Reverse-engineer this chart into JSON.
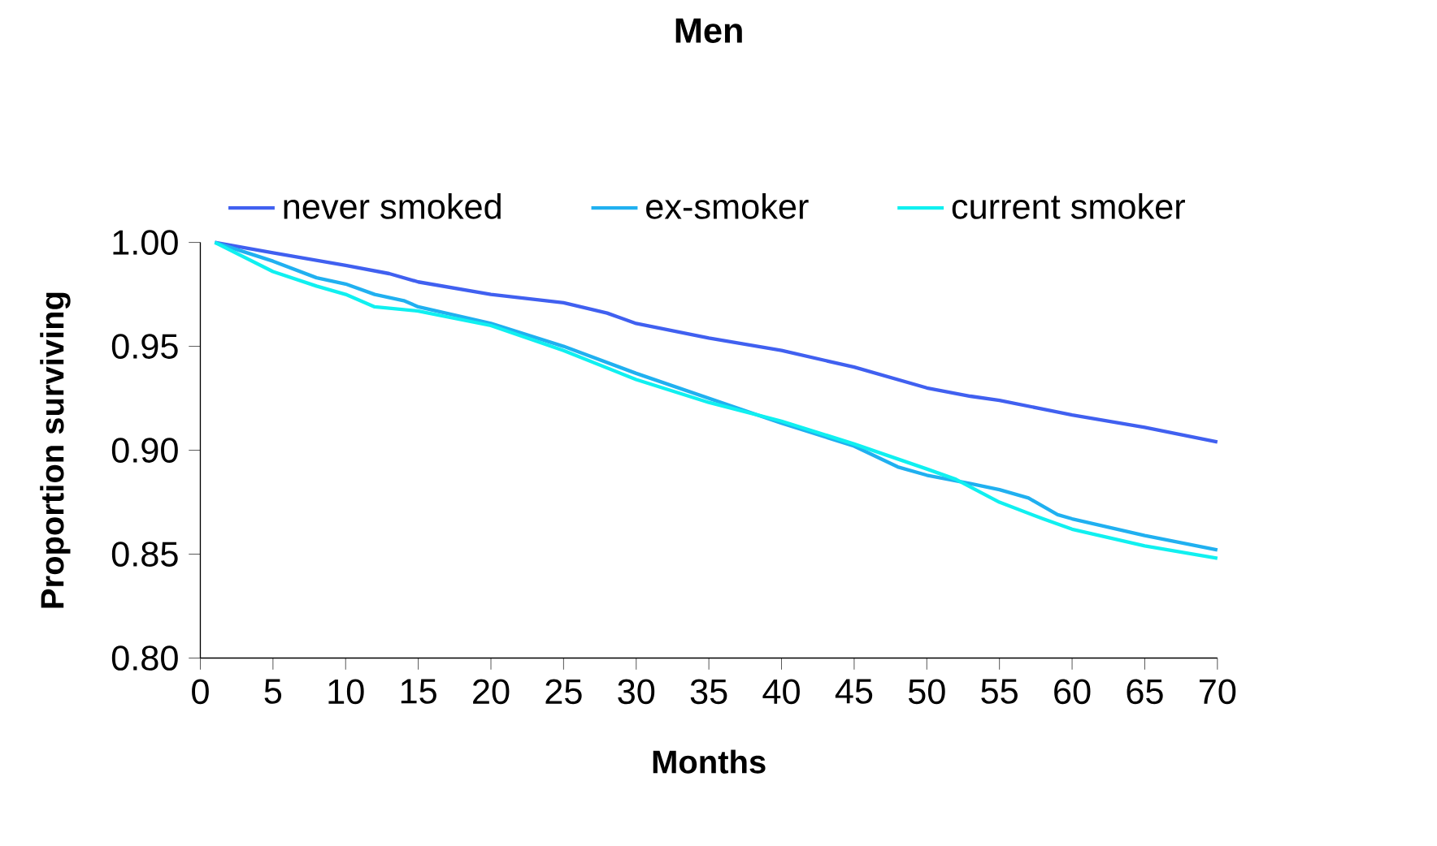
{
  "chart_data": {
    "type": "line",
    "title": "Men",
    "xlabel": "Months",
    "ylabel": "Proportion surviving",
    "xlim": [
      0,
      70
    ],
    "xticks": [
      0,
      5,
      10,
      15,
      20,
      25,
      30,
      35,
      40,
      45,
      50,
      55,
      60,
      65,
      70
    ],
    "ylim": [
      0.8,
      1.0
    ],
    "yticks": [
      {
        "value": 0.8,
        "label": "0.80"
      },
      {
        "value": 0.85,
        "label": "0.85"
      },
      {
        "value": 0.9,
        "label": "0.90"
      },
      {
        "value": 0.95,
        "label": "0.95"
      },
      {
        "value": 1.0,
        "label": "1.00"
      }
    ],
    "legend": "top",
    "grid": false,
    "marker": "none",
    "line_style": "solid",
    "series": [
      {
        "name": "never smoked",
        "color": "#4060f0",
        "x": [
          1,
          5,
          10,
          13,
          15,
          20,
          25,
          28,
          30,
          35,
          40,
          45,
          50,
          53,
          55,
          60,
          65,
          70
        ],
        "values": [
          1.0,
          0.995,
          0.989,
          0.985,
          0.981,
          0.975,
          0.971,
          0.966,
          0.961,
          0.954,
          0.948,
          0.94,
          0.93,
          0.926,
          0.924,
          0.917,
          0.911,
          0.904
        ]
      },
      {
        "name": "ex-smoker",
        "color": "#20b0f0",
        "x": [
          1,
          5,
          8,
          10,
          12,
          14,
          15,
          20,
          25,
          30,
          35,
          40,
          45,
          48,
          50,
          53,
          55,
          57,
          59,
          60,
          65,
          70
        ],
        "values": [
          1.0,
          0.991,
          0.983,
          0.98,
          0.975,
          0.972,
          0.969,
          0.961,
          0.95,
          0.937,
          0.925,
          0.913,
          0.902,
          0.892,
          0.888,
          0.884,
          0.881,
          0.877,
          0.869,
          0.867,
          0.859,
          0.852
        ]
      },
      {
        "name": "current smoker",
        "color": "#10f0f0",
        "x": [
          1,
          5,
          8,
          10,
          12,
          15,
          20,
          25,
          30,
          35,
          40,
          45,
          50,
          52,
          55,
          58,
          60,
          65,
          70
        ],
        "values": [
          1.0,
          0.986,
          0.979,
          0.975,
          0.969,
          0.967,
          0.96,
          0.948,
          0.934,
          0.923,
          0.914,
          0.903,
          0.891,
          0.886,
          0.875,
          0.867,
          0.862,
          0.854,
          0.848
        ]
      }
    ]
  }
}
